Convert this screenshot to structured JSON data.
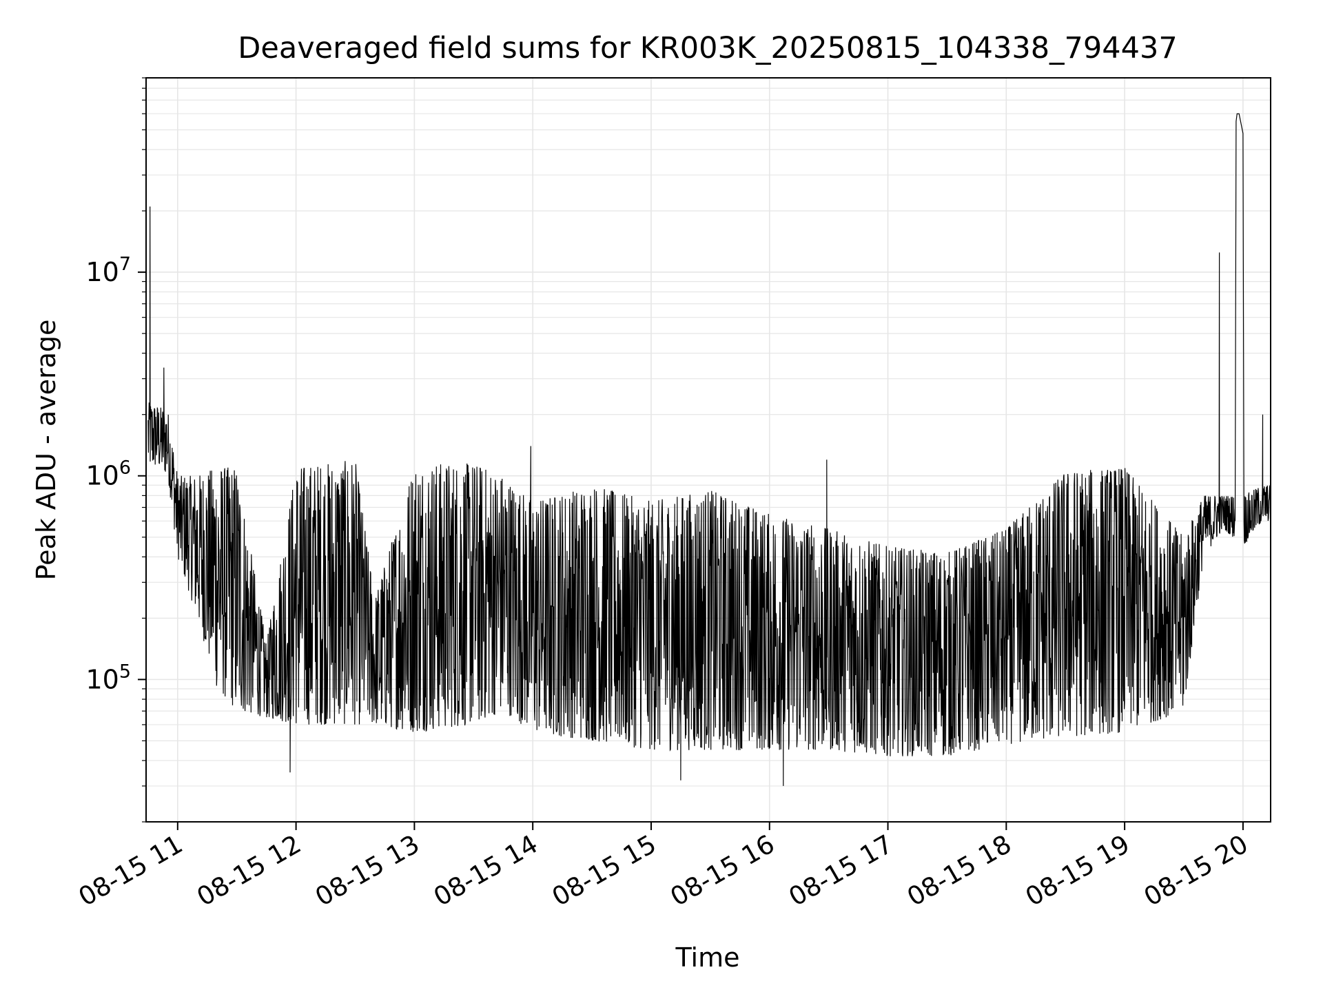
{
  "chart_data": {
    "type": "line",
    "title": "Deaveraged field sums for KR003K_20250815_104338_794437",
    "xlabel": "Time",
    "ylabel": "Peak ADU - average",
    "yscale": "log",
    "ylim": [
      20000,
      90000000
    ],
    "xlim": [
      "2025-08-15 10:44",
      "2025-08-15 20:14"
    ],
    "grid": true,
    "grid_color": "#e6e6e6",
    "line_color": "#000000",
    "x_ticks": [
      {
        "label": "08-15 11",
        "t": "2025-08-15 11:00"
      },
      {
        "label": "08-15 12",
        "t": "2025-08-15 12:00"
      },
      {
        "label": "08-15 13",
        "t": "2025-08-15 13:00"
      },
      {
        "label": "08-15 14",
        "t": "2025-08-15 14:00"
      },
      {
        "label": "08-15 15",
        "t": "2025-08-15 15:00"
      },
      {
        "label": "08-15 16",
        "t": "2025-08-15 16:00"
      },
      {
        "label": "08-15 17",
        "t": "2025-08-15 17:00"
      },
      {
        "label": "08-15 18",
        "t": "2025-08-15 18:00"
      },
      {
        "label": "08-15 19",
        "t": "2025-08-15 19:00"
      },
      {
        "label": "08-15 20",
        "t": "2025-08-15 20:00"
      }
    ],
    "y_ticks": [
      {
        "base": "10",
        "exp": "5",
        "value": 100000
      },
      {
        "base": "10",
        "exp": "6",
        "value": 1000000
      },
      {
        "base": "10",
        "exp": "7",
        "value": 10000000
      }
    ],
    "series": [
      {
        "band_points": [
          {
            "t": "2025-08-15 10:45",
            "lo": 1100000,
            "hi": 2300000
          },
          {
            "t": "2025-08-15 10:50",
            "lo": 1100000,
            "hi": 2200000
          },
          {
            "t": "2025-08-15 10:55",
            "lo": 1000000,
            "hi": 2100000
          },
          {
            "t": "2025-08-15 11:00",
            "lo": 400000,
            "hi": 1000000
          },
          {
            "t": "2025-08-15 11:10",
            "lo": 200000,
            "hi": 1000000
          },
          {
            "t": "2025-08-15 11:20",
            "lo": 90000,
            "hi": 1100000
          },
          {
            "t": "2025-08-15 11:30",
            "lo": 70000,
            "hi": 1100000
          },
          {
            "t": "2025-08-15 11:45",
            "lo": 65000,
            "hi": 150000
          },
          {
            "t": "2025-08-15 12:00",
            "lo": 60000,
            "hi": 1100000
          },
          {
            "t": "2025-08-15 12:30",
            "lo": 60000,
            "hi": 1200000
          },
          {
            "t": "2025-08-15 12:40",
            "lo": 60000,
            "hi": 250000
          },
          {
            "t": "2025-08-15 13:00",
            "lo": 55000,
            "hi": 1150000
          },
          {
            "t": "2025-08-15 13:30",
            "lo": 60000,
            "hi": 1150000
          },
          {
            "t": "2025-08-15 13:45",
            "lo": 70000,
            "hi": 1000000
          },
          {
            "t": "2025-08-15 14:00",
            "lo": 55000,
            "hi": 750000
          },
          {
            "t": "2025-08-15 14:30",
            "lo": 50000,
            "hi": 900000
          },
          {
            "t": "2025-08-15 15:00",
            "lo": 45000,
            "hi": 750000
          },
          {
            "t": "2025-08-15 15:30",
            "lo": 45000,
            "hi": 850000
          },
          {
            "t": "2025-08-15 16:00",
            "lo": 45000,
            "hi": 650000
          },
          {
            "t": "2025-08-15 16:30",
            "lo": 45000,
            "hi": 550000
          },
          {
            "t": "2025-08-15 17:00",
            "lo": 42000,
            "hi": 450000
          },
          {
            "t": "2025-08-15 17:30",
            "lo": 42000,
            "hi": 420000
          },
          {
            "t": "2025-08-15 18:00",
            "lo": 48000,
            "hi": 550000
          },
          {
            "t": "2025-08-15 18:30",
            "lo": 52000,
            "hi": 1050000
          },
          {
            "t": "2025-08-15 19:00",
            "lo": 55000,
            "hi": 1100000
          },
          {
            "t": "2025-08-15 19:30",
            "lo": 70000,
            "hi": 500000
          },
          {
            "t": "2025-08-15 19:40",
            "lo": 400000,
            "hi": 800000
          },
          {
            "t": "2025-08-15 19:50",
            "lo": 550000,
            "hi": 800000
          },
          {
            "t": "2025-08-15 20:00",
            "lo": 450000,
            "hi": 800000
          },
          {
            "t": "2025-08-15 20:10",
            "lo": 600000,
            "hi": 900000
          }
        ],
        "spikes": [
          {
            "t": "2025-08-15 10:46",
            "value": 21000000
          },
          {
            "t": "2025-08-15 10:53",
            "value": 3400000
          },
          {
            "t": "2025-08-15 11:57",
            "value": 35000
          },
          {
            "t": "2025-08-15 13:59",
            "value": 1400000
          },
          {
            "t": "2025-08-15 16:29",
            "value": 1200000
          },
          {
            "t": "2025-08-15 16:07",
            "value": 30000
          },
          {
            "t": "2025-08-15 15:15",
            "value": 32000
          },
          {
            "t": "2025-08-15 19:48",
            "value": 12500000
          },
          {
            "t": "2025-08-15 19:57",
            "value": 60000000
          },
          {
            "t": "2025-08-15 20:10",
            "value": 2000000
          }
        ],
        "plateau": [
          {
            "t": "2025-08-15 19:56",
            "value": 600000
          },
          {
            "t": "2025-08-15 19:56.5",
            "value": 55000000
          },
          {
            "t": "2025-08-15 19:58",
            "value": 60000000
          },
          {
            "t": "2025-08-15 20:00",
            "value": 48000000
          },
          {
            "t": "2025-08-15 20:00.5",
            "value": 600000
          }
        ]
      }
    ]
  }
}
